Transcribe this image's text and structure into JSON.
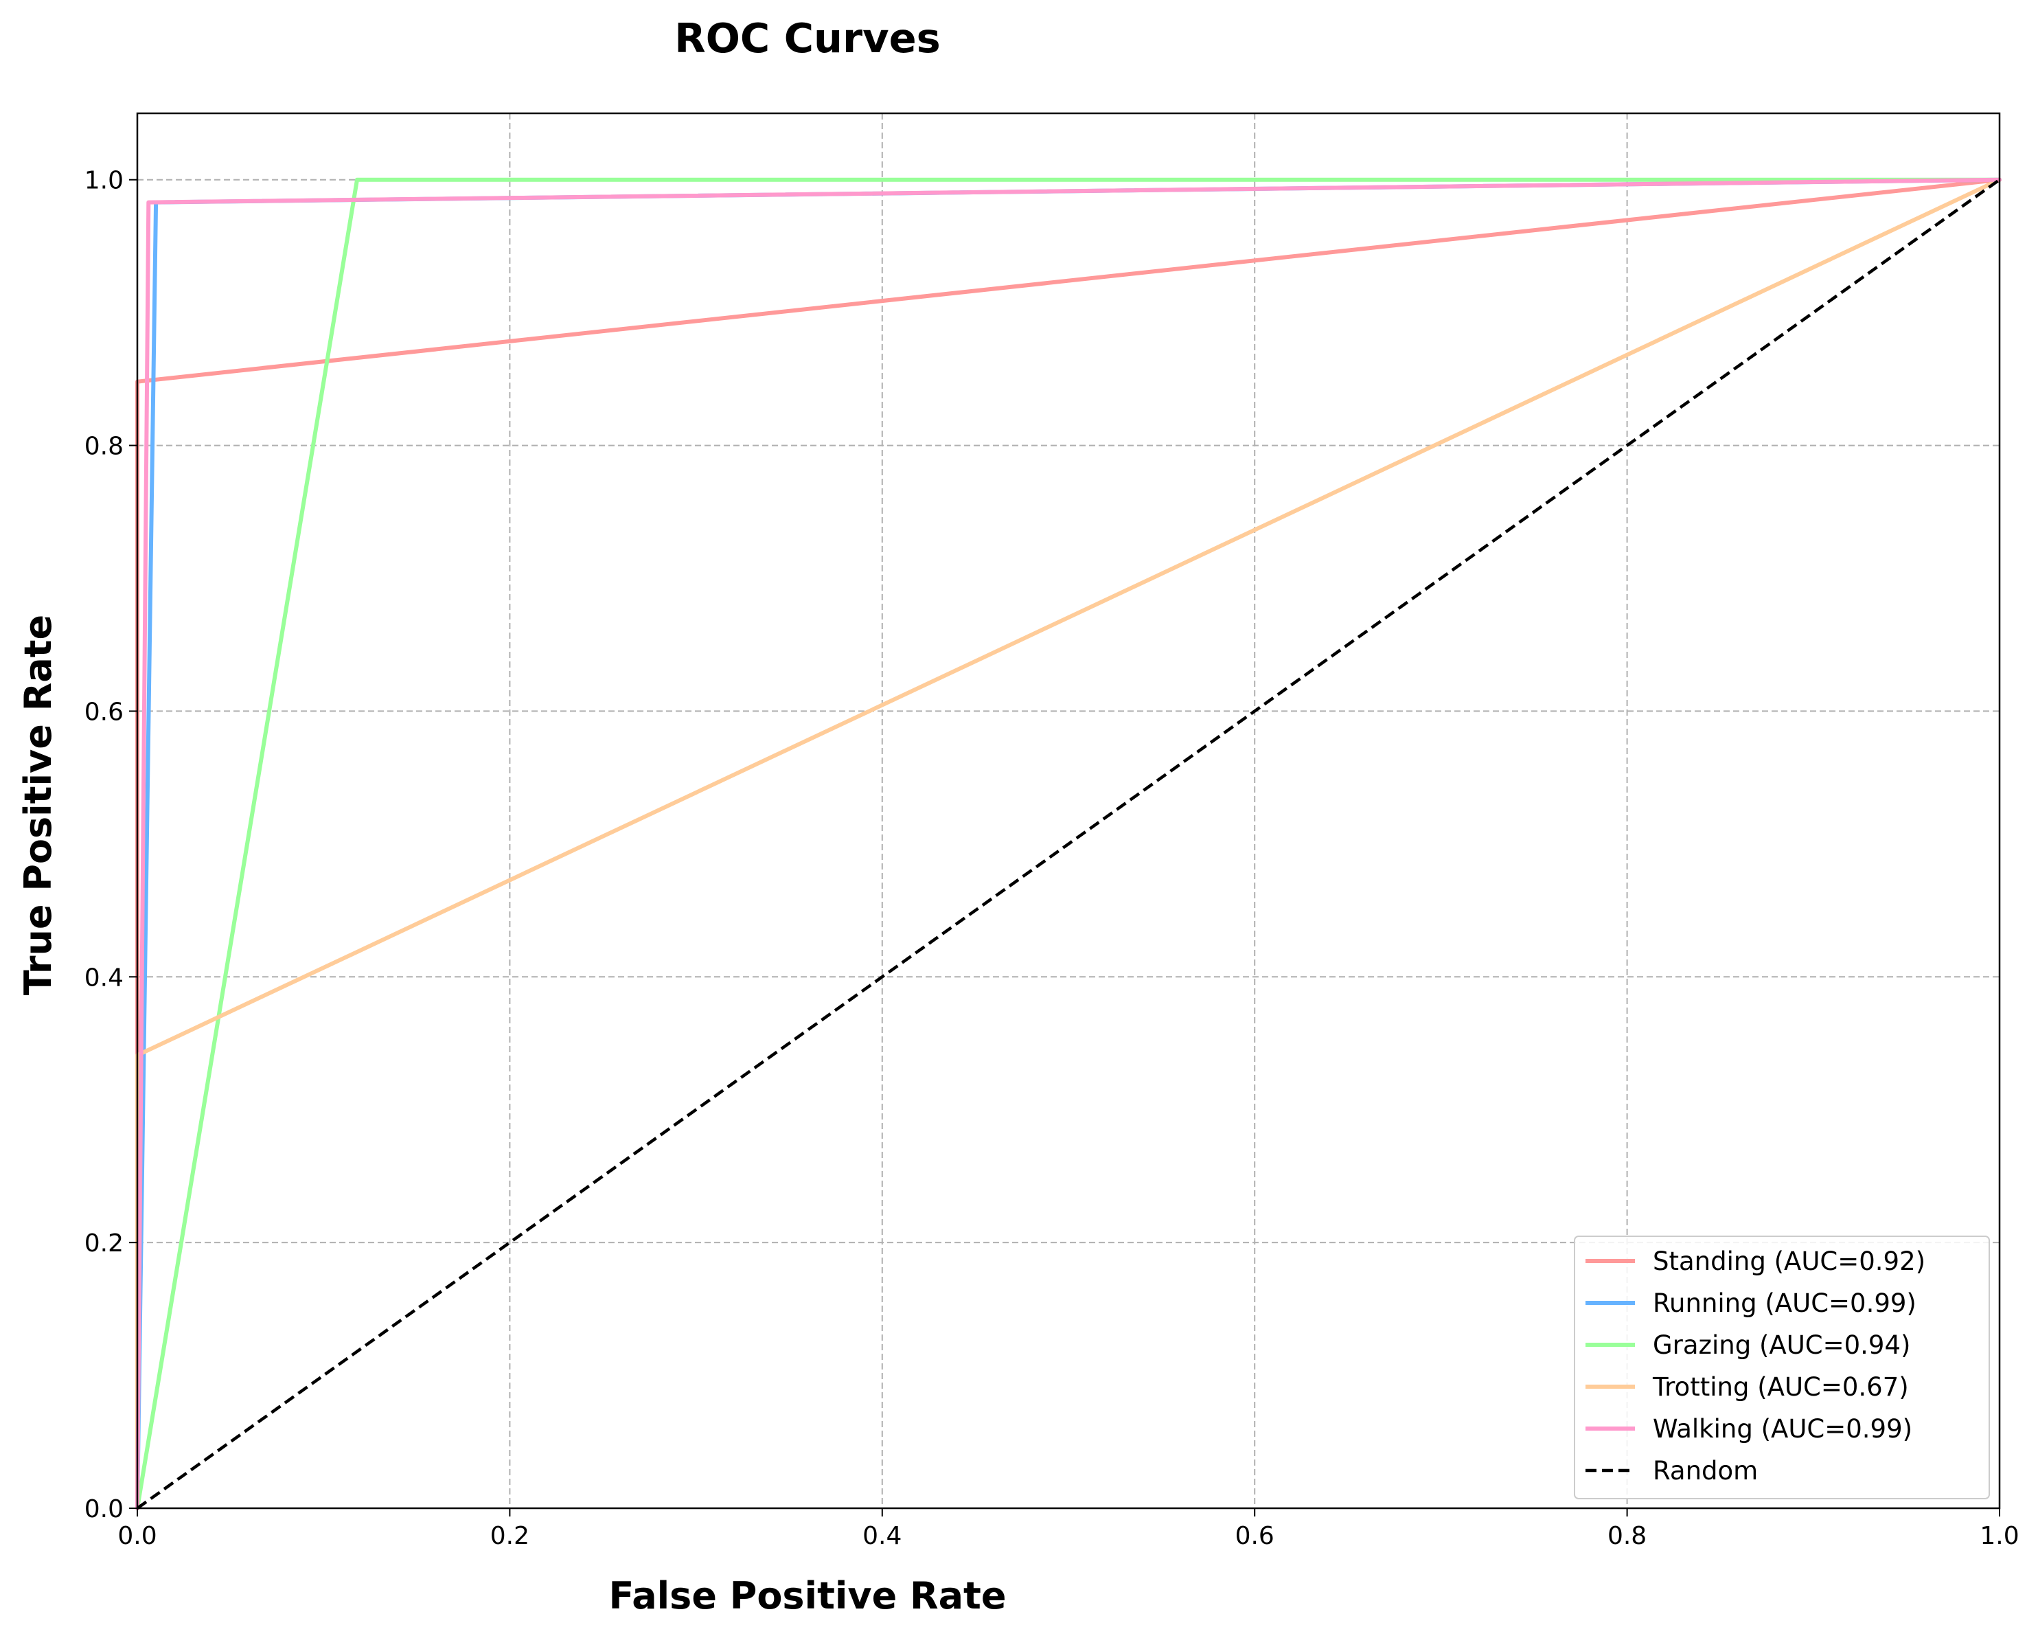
{
  "chart_data": {
    "type": "line",
    "title": "ROC Curves",
    "xlabel": "False Positive Rate",
    "ylabel": "True Positive Rate",
    "xlim": [
      0.0,
      1.0
    ],
    "ylim": [
      0.0,
      1.05
    ],
    "x_ticks": [
      "0.0",
      "0.2",
      "0.4",
      "0.6",
      "0.8",
      "1.0"
    ],
    "y_ticks": [
      "0.0",
      "0.2",
      "0.4",
      "0.6",
      "0.8",
      "1.0"
    ],
    "grid": true,
    "legend_position": "bottom-right",
    "series": [
      {
        "name": "Standing (AUC=0.92)",
        "color": "#ff9999",
        "x": [
          0.0,
          0.0,
          1.0
        ],
        "y": [
          0.0,
          0.848,
          1.0
        ]
      },
      {
        "name": "Running (AUC=0.99)",
        "color": "#66b3ff",
        "x": [
          0.0,
          0.01,
          1.0
        ],
        "y": [
          0.0,
          0.983,
          1.0
        ]
      },
      {
        "name": "Grazing (AUC=0.94)",
        "color": "#99ff99",
        "x": [
          0.0,
          0.118,
          1.0
        ],
        "y": [
          0.0,
          1.0,
          1.0
        ]
      },
      {
        "name": "Trotting (AUC=0.67)",
        "color": "#ffcc99",
        "x": [
          0.0,
          0.0,
          1.0
        ],
        "y": [
          0.0,
          0.341,
          1.0
        ]
      },
      {
        "name": "Walking (AUC=0.99)",
        "color": "#ff99cc",
        "x": [
          0.0,
          0.006,
          1.0
        ],
        "y": [
          0.0,
          0.983,
          1.0
        ]
      },
      {
        "name": "Random",
        "color": "#000000",
        "dashed": true,
        "x": [
          0.0,
          1.0
        ],
        "y": [
          0.0,
          1.0
        ]
      }
    ]
  }
}
